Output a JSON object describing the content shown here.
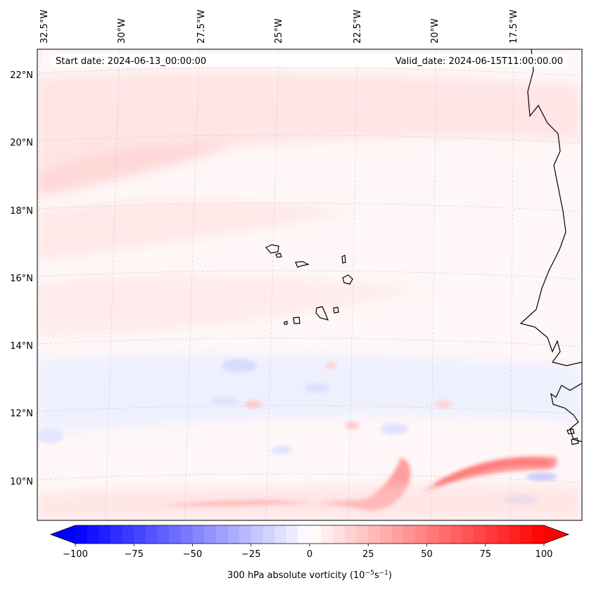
{
  "map": {
    "start_date": "Start date: 2024-06-13_00:00:00",
    "valid_date": "Valid_date: 2024-06-15T11:00:00.00",
    "lon_labels": [
      "32.5°W",
      "30°W",
      "27.5°W",
      "25°W",
      "22.5°W",
      "20°W",
      "17.5°W"
    ],
    "lat_labels": [
      "22°N",
      "20°N",
      "18°N",
      "16°N",
      "14°N",
      "12°N",
      "10°N"
    ]
  },
  "colorbar": {
    "label": "300 hPa absolute vorticity (10",
    "label_exp1": "−5",
    "label_mid": "s",
    "label_exp2": "−1",
    "label_end": ")",
    "ticks": [
      "−100",
      "−75",
      "−50",
      "−25",
      "0",
      "25",
      "50",
      "75",
      "100"
    ],
    "vmin": -100,
    "vmax": 100,
    "min_color": "#0000ff",
    "max_color": "#ff0000"
  },
  "colors": {
    "field_base": "#fff6f6",
    "positive": "#ff0000",
    "negative": "#0000ff",
    "coastline": "#000000"
  }
}
